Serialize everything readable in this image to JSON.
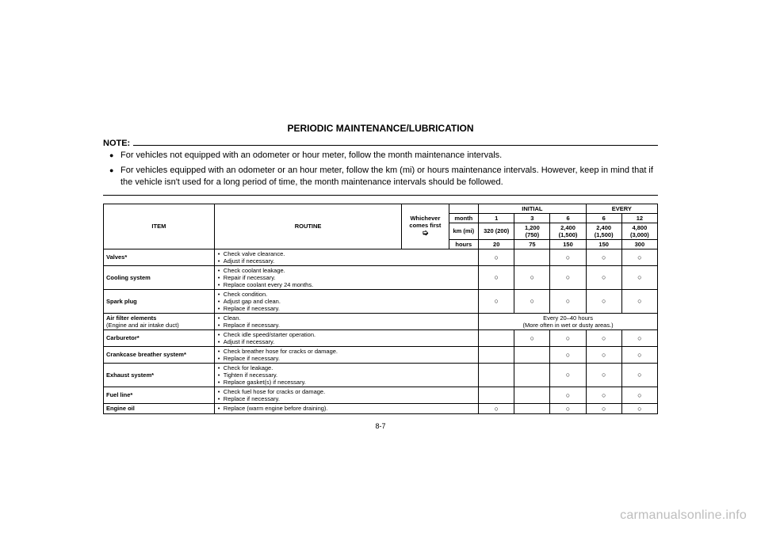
{
  "title": "PERIODIC MAINTENANCE/LUBRICATION",
  "note_label": "NOTE:",
  "notes": [
    "For vehicles not equipped with an odometer or hour meter, follow the month maintenance intervals.",
    "For vehicles equipped with an odometer or an hour meter, follow the km (mi) or hours maintenance intervals. However, keep in mind that if the vehicle isn't used for a long period of time, the month maintenance intervals should be followed."
  ],
  "header": {
    "item": "ITEM",
    "routine": "ROUTINE",
    "whichever": "Whichever comes first",
    "initial": "INITIAL",
    "every": "EVERY",
    "unit_month": "month",
    "unit_km": "km (mi)",
    "unit_hours": "hours",
    "months": [
      "1",
      "3",
      "6",
      "6",
      "12"
    ],
    "km": [
      "320 (200)",
      "1,200 (750)",
      "2,400 (1,500)",
      "2,400 (1,500)",
      "4,800 (3,000)"
    ],
    "hours": [
      "20",
      "75",
      "150",
      "150",
      "300"
    ]
  },
  "circle": "○",
  "rows": [
    {
      "item": "Valves*",
      "routine": [
        "Check valve clearance.",
        "Adjust if necessary."
      ],
      "marks": [
        "○",
        "",
        "○",
        "○",
        "○"
      ]
    },
    {
      "item": "Cooling system",
      "routine": [
        "Check coolant leakage.",
        "Repair if necessary.",
        "Replace coolant every 24 months."
      ],
      "marks": [
        "○",
        "○",
        "○",
        "○",
        "○"
      ]
    },
    {
      "item": "Spark plug",
      "routine": [
        "Check condition.",
        "Adjust gap and clean.",
        "Replace if necessary."
      ],
      "marks": [
        "○",
        "○",
        "○",
        "○",
        "○"
      ]
    },
    {
      "item": "Air filter elements",
      "item_sub": "(Engine and air intake duct)",
      "routine": [
        "Clean.",
        "Replace if necessary."
      ],
      "span_text": "Every 20–40 hours",
      "span_sub": "(More often in wet or dusty areas.)"
    },
    {
      "item": "Carburetor*",
      "routine": [
        "Check idle speed/starter operation.",
        "Adjust if necessary."
      ],
      "marks": [
        "",
        "○",
        "○",
        "○",
        "○"
      ]
    },
    {
      "item": "Crankcase breather system*",
      "routine": [
        "Check breather hose for cracks or damage.",
        "Replace if necessary."
      ],
      "marks": [
        "",
        "",
        "○",
        "○",
        "○"
      ]
    },
    {
      "item": "Exhaust system*",
      "routine": [
        "Check for leakage.",
        "Tighten if necessary.",
        "Replace gasket(s) if necessary."
      ],
      "marks": [
        "",
        "",
        "○",
        "○",
        "○"
      ]
    },
    {
      "item": "Fuel line*",
      "routine": [
        "Check fuel hose for cracks or damage.",
        "Replace if necessary."
      ],
      "marks": [
        "",
        "",
        "○",
        "○",
        "○"
      ]
    },
    {
      "item": "Engine oil",
      "routine": [
        "Replace (warm engine before draining)."
      ],
      "marks": [
        "○",
        "",
        "○",
        "○",
        "○"
      ]
    }
  ],
  "page_num": "8-7",
  "watermark": "carmanualsonline.info",
  "colors": {
    "text": "#000000",
    "bg": "#ffffff",
    "watermark": "#bdbdbd",
    "border": "#000000"
  }
}
